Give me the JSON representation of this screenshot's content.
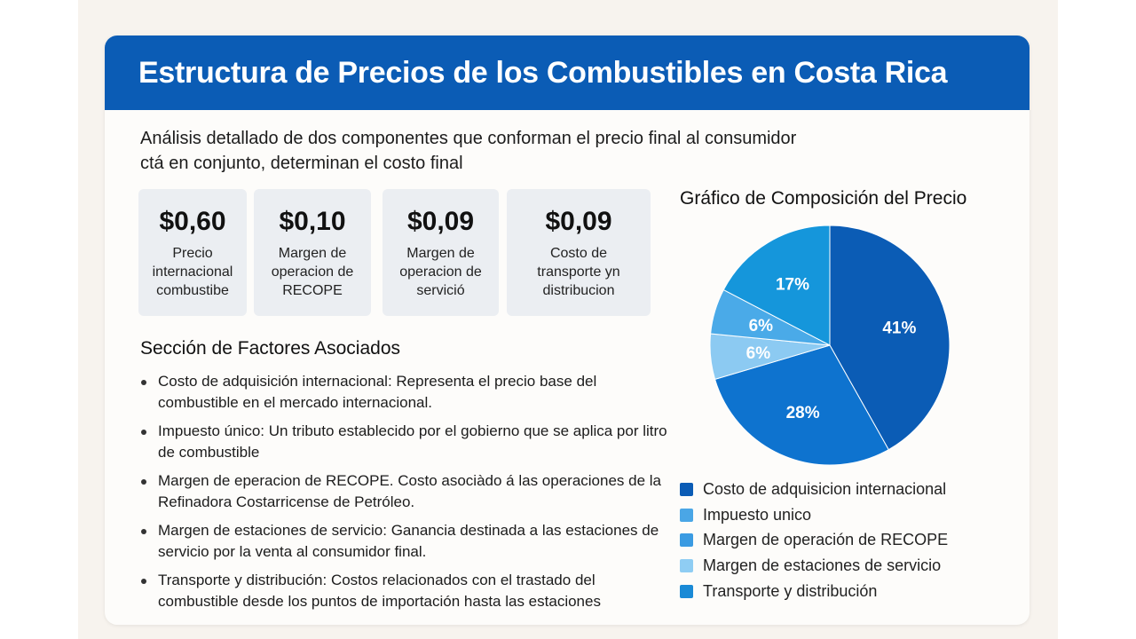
{
  "header": {
    "title": "Estructura de Precios de los Combustibles en Costa Rica"
  },
  "subtitle": {
    "line1": "Análisis detallado de dos componentes que conforman el precio final al consumidor",
    "line2": "ctá en conjunto, determinan el costo final"
  },
  "stats": [
    {
      "value": "$0,60",
      "label": "Precio internacional combustibe"
    },
    {
      "value": "$0,10",
      "label": "Margen de operacion de RECOPE"
    },
    {
      "value": "$0,09",
      "label": "Margen de operacion de servició"
    },
    {
      "value": "$0,09",
      "label": "Costo de transporte yn distribucion"
    }
  ],
  "factors": {
    "title": "Sección de Factores Asociados",
    "items": [
      "Costo de adquisición internacional: Representa el precio base del combustible en el mercado internacional.",
      "Impuesto único: Un tributo establecido por el gobierno que se aplica por litro de combustible",
      "Margen de eperacion de RECOPE. Costo asociàdo á las operaciones de la Refinadora Costarricense de Petróleo.",
      "Margen de estaciones de servicio: Ganancia destinada a las estaciones de servicio por la venta al consumidor final.",
      "Transporte y distribución: Costos relacionados con el trastado del combustible desde los puntos de importación hasta las estaciones"
    ]
  },
  "chart_data": {
    "type": "pie",
    "title": "Gráfico de Composición del Precio",
    "legend_position": "bottom",
    "slices": [
      {
        "label": "Costo de adquisicion internacional",
        "value": 41,
        "display": "41%",
        "color": "#0b5cb5"
      },
      {
        "label": "Impuesto unico",
        "value": 28,
        "display": "28%",
        "color": "#0e73cf"
      },
      {
        "label": "Margen de operación de RECOPE",
        "value": 6,
        "display": "6%",
        "color": "#8ccaf2"
      },
      {
        "label": "Margen de estaciones de servicio",
        "value": 6,
        "display": "6%",
        "color": "#4aaae8"
      },
      {
        "label": "Transporte y distribución",
        "value": 17,
        "display": "17%",
        "color": "#1596db"
      }
    ],
    "legend": [
      {
        "label": "Costo de adquisicion internacional",
        "color": "#0b5cb5"
      },
      {
        "label": "Impuesto unico",
        "color": "#4aa6e6"
      },
      {
        "label": "Margen de operación de RECOPE",
        "color": "#3a9be2"
      },
      {
        "label": "Margen de estaciones de servicio",
        "color": "#8fcdf3"
      },
      {
        "label": "Transporte y distribución",
        "color": "#1a8ad6"
      }
    ]
  }
}
